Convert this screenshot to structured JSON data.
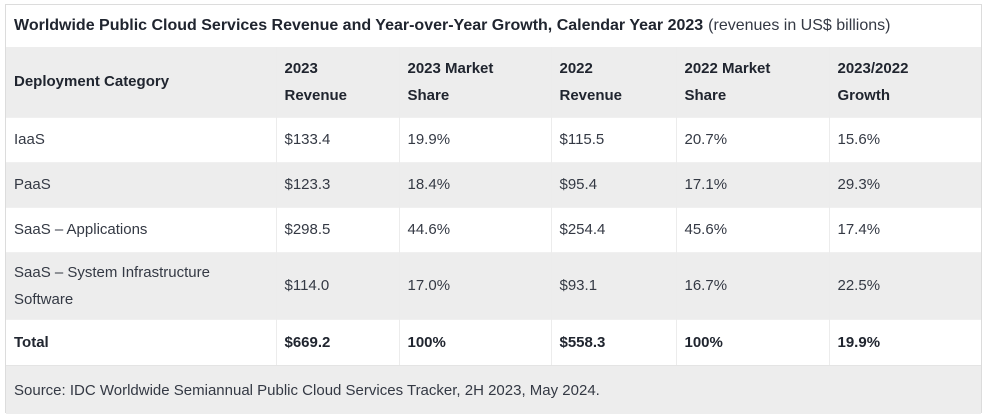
{
  "title": {
    "main": "Worldwide Public Cloud Services Revenue and Year-over-Year Growth, Calendar Year 2023",
    "note": "(revenues in US$ billions)"
  },
  "table": {
    "headers": [
      "Deployment Category",
      "2023\nRevenue",
      "2023 Market\nShare",
      "2022\nRevenue",
      "2022 Market\nShare",
      "2023/2022\nGrowth"
    ],
    "rows": [
      [
        "IaaS",
        "$133.4",
        "19.9%",
        "$115.5",
        "20.7%",
        "15.6%"
      ],
      [
        "PaaS",
        "$123.3",
        "18.4%",
        "$95.4",
        "17.1%",
        "29.3%"
      ],
      [
        "SaaS – Applications",
        "$298.5",
        "44.6%",
        "$254.4",
        "45.6%",
        "17.4%"
      ],
      [
        "SaaS – System Infrastructure Software",
        "$114.0",
        "17.0%",
        "$93.1",
        "16.7%",
        "22.5%"
      ],
      [
        "Total",
        "$669.2",
        "100%",
        "$558.3",
        "100%",
        "19.9%"
      ]
    ]
  },
  "source": "Source: IDC Worldwide Semiannual Public Cloud Services Tracker, 2H 2023, May 2024.",
  "colors": {
    "zebra_gray": "#ededed",
    "border": "#dcdcdc",
    "cell_border": "#ececec",
    "text_dark": "#20252f",
    "text_body": "#343944",
    "background": "#ffffff"
  },
  "chart_data": {
    "type": "table",
    "title": "Worldwide Public Cloud Services Revenue and Year-over-Year Growth, Calendar Year 2023 (revenues in US$ billions)",
    "columns": [
      "Deployment Category",
      "2023 Revenue",
      "2023 Market Share",
      "2022 Revenue",
      "2022 Market Share",
      "2023/2022 Growth"
    ],
    "rows": [
      {
        "category": "IaaS",
        "revenue_2023": 133.4,
        "market_share_2023_pct": 19.9,
        "revenue_2022": 115.5,
        "market_share_2022_pct": 20.7,
        "growth_pct": 15.6
      },
      {
        "category": "PaaS",
        "revenue_2023": 123.3,
        "market_share_2023_pct": 18.4,
        "revenue_2022": 95.4,
        "market_share_2022_pct": 17.1,
        "growth_pct": 29.3
      },
      {
        "category": "SaaS – Applications",
        "revenue_2023": 298.5,
        "market_share_2023_pct": 44.6,
        "revenue_2022": 254.4,
        "market_share_2022_pct": 45.6,
        "growth_pct": 17.4
      },
      {
        "category": "SaaS – System Infrastructure Software",
        "revenue_2023": 114.0,
        "market_share_2023_pct": 17.0,
        "revenue_2022": 93.1,
        "market_share_2022_pct": 16.7,
        "growth_pct": 22.5
      },
      {
        "category": "Total",
        "revenue_2023": 669.2,
        "market_share_2023_pct": 100,
        "revenue_2022": 558.3,
        "market_share_2022_pct": 100,
        "growth_pct": 19.9
      }
    ],
    "source_note": "Source: IDC Worldwide Semiannual Public Cloud Services Tracker, 2H 2023, May 2024.",
    "units": "US$ billions"
  }
}
